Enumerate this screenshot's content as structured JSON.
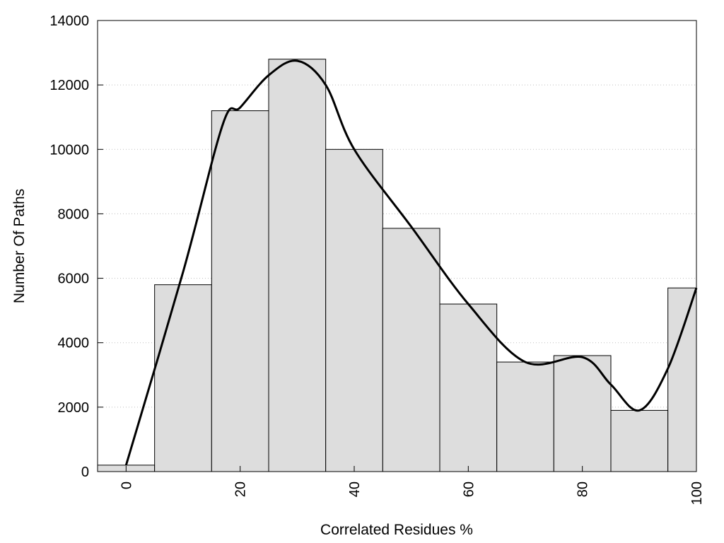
{
  "chart_data": {
    "type": "bar",
    "xlabel": "Correlated Residues %",
    "ylabel": "Number Of Paths",
    "xlim": [
      -5,
      100
    ],
    "ylim": [
      0,
      14000
    ],
    "grid": "horizontal dotted",
    "bar_color": "#dddddd",
    "bins": [
      {
        "x0": -5,
        "x1": 5,
        "value": 200
      },
      {
        "x0": 5,
        "x1": 15,
        "value": 5800
      },
      {
        "x0": 15,
        "x1": 25,
        "value": 11200
      },
      {
        "x0": 25,
        "x1": 35,
        "value": 12800
      },
      {
        "x0": 35,
        "x1": 45,
        "value": 10000
      },
      {
        "x0": 45,
        "x1": 55,
        "value": 7550
      },
      {
        "x0": 55,
        "x1": 65,
        "value": 5200
      },
      {
        "x0": 65,
        "x1": 75,
        "value": 3400
      },
      {
        "x0": 75,
        "x1": 85,
        "value": 3600
      },
      {
        "x0": 85,
        "x1": 95,
        "value": 1900
      },
      {
        "x0": 95,
        "x1": 100,
        "value": 5700
      }
    ],
    "curve": {
      "x": [
        0,
        10,
        17,
        20,
        25,
        30,
        35,
        40,
        50,
        60,
        70,
        80,
        85,
        90,
        95,
        100
      ],
      "y": [
        200,
        6200,
        10800,
        11300,
        12300,
        12750,
        12000,
        10000,
        7600,
        5200,
        3400,
        3550,
        2700,
        1900,
        3200,
        5700
      ]
    },
    "x_ticks": [
      0,
      20,
      40,
      60,
      80,
      100
    ],
    "y_ticks": [
      0,
      2000,
      4000,
      6000,
      8000,
      10000,
      12000,
      14000
    ]
  }
}
